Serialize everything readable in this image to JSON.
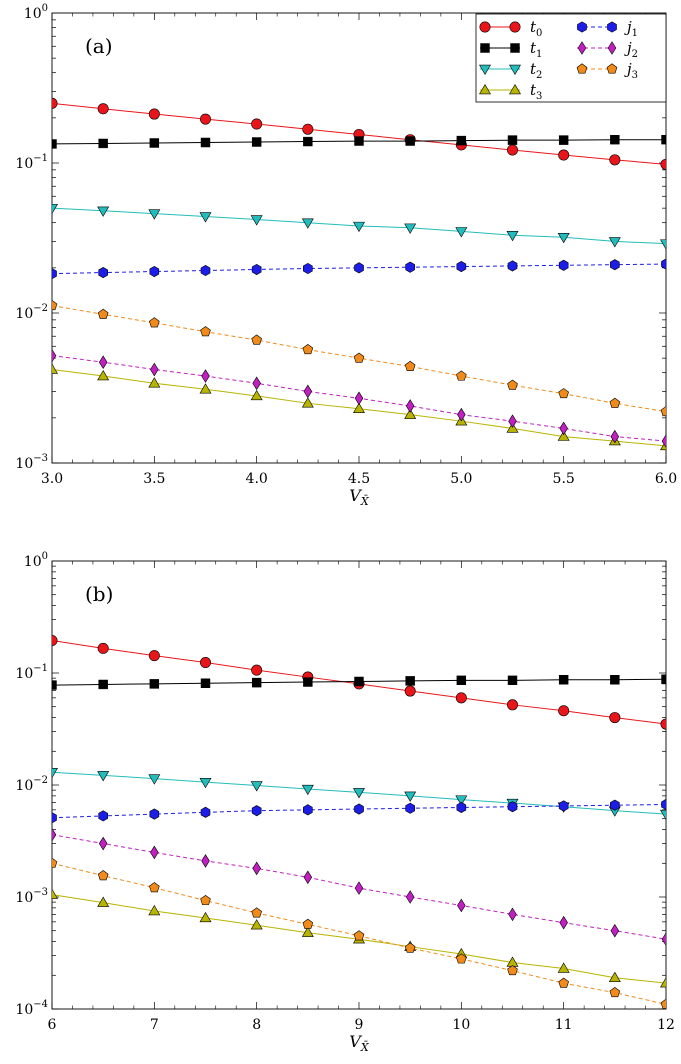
{
  "chart_data": [
    {
      "type": "line",
      "panel_label": "(a)",
      "xlabel": "V",
      "xlabel_sub": "X̄",
      "ylabel": "",
      "yscale": "log",
      "xlim": [
        3.0,
        6.0
      ],
      "ylim": [
        0.001,
        1
      ],
      "x_ticks": [
        3.0,
        3.5,
        4.0,
        4.5,
        5.0,
        5.5,
        6.0
      ],
      "x_tick_labels": [
        "3.0",
        "3.5",
        "4.0",
        "4.5",
        "5.0",
        "5.5",
        "6.0"
      ],
      "y_ticks": [
        {
          "base": "10",
          "exp": "0",
          "value": 1
        },
        {
          "base": "10",
          "exp": "−1",
          "value": 0.1
        },
        {
          "base": "10",
          "exp": "−2",
          "value": 0.01
        },
        {
          "base": "10",
          "exp": "−3",
          "value": 0.001
        }
      ],
      "legend_position": "top-right",
      "x": [
        3.0,
        3.25,
        3.5,
        3.75,
        4.0,
        4.25,
        4.5,
        4.75,
        5.0,
        5.25,
        5.5,
        5.75,
        6.0
      ],
      "series": [
        {
          "name": "t",
          "sub": "0",
          "color": "#e8161b",
          "marker": "circle",
          "dashed": false,
          "values": [
            0.25,
            0.23,
            0.212,
            0.196,
            0.182,
            0.168,
            0.155,
            0.143,
            0.132,
            0.122,
            0.113,
            0.105,
            0.098
          ]
        },
        {
          "name": "t",
          "sub": "1",
          "color": "#000000",
          "marker": "square",
          "dashed": false,
          "values": [
            0.134,
            0.135,
            0.136,
            0.137,
            0.138,
            0.139,
            0.14,
            0.14,
            0.141,
            0.142,
            0.142,
            0.143,
            0.143
          ]
        },
        {
          "name": "t",
          "sub": "2",
          "color": "#23bcbc",
          "marker": "triangle-down",
          "dashed": false,
          "values": [
            0.05,
            0.048,
            0.046,
            0.044,
            0.042,
            0.04,
            0.038,
            0.037,
            0.035,
            0.033,
            0.032,
            0.03,
            0.029
          ]
        },
        {
          "name": "t",
          "sub": "3",
          "color": "#b9b400",
          "marker": "triangle-up",
          "dashed": false,
          "values": [
            0.0042,
            0.0038,
            0.0034,
            0.0031,
            0.0028,
            0.0025,
            0.0023,
            0.0021,
            0.0019,
            0.0017,
            0.0015,
            0.0014,
            0.0013
          ]
        },
        {
          "name": "j",
          "sub": "1",
          "color": "#1d1de8",
          "marker": "hexagon",
          "dashed": true,
          "values": [
            0.0183,
            0.0186,
            0.0189,
            0.0192,
            0.0195,
            0.0198,
            0.02,
            0.0202,
            0.0204,
            0.0206,
            0.0208,
            0.021,
            0.0212
          ]
        },
        {
          "name": "j",
          "sub": "2",
          "color": "#c020c0",
          "marker": "diamond",
          "dashed": true,
          "values": [
            0.0052,
            0.0047,
            0.0042,
            0.0038,
            0.0034,
            0.003,
            0.0027,
            0.0024,
            0.0021,
            0.0019,
            0.0017,
            0.0015,
            0.0014
          ]
        },
        {
          "name": "j",
          "sub": "3",
          "color": "#f08a1a",
          "marker": "pentagon",
          "dashed": true,
          "values": [
            0.0112,
            0.0098,
            0.0086,
            0.0075,
            0.0066,
            0.0057,
            0.005,
            0.0044,
            0.0038,
            0.0033,
            0.0029,
            0.0025,
            0.0022
          ]
        }
      ]
    },
    {
      "type": "line",
      "panel_label": "(b)",
      "xlabel": "V",
      "xlabel_sub": "X̄",
      "ylabel": "",
      "yscale": "log",
      "xlim": [
        6,
        12
      ],
      "ylim": [
        0.0001,
        1
      ],
      "x_ticks": [
        6,
        7,
        8,
        9,
        10,
        11,
        12
      ],
      "x_tick_labels": [
        "6",
        "7",
        "8",
        "9",
        "10",
        "11",
        "12"
      ],
      "y_ticks": [
        {
          "base": "10",
          "exp": "0",
          "value": 1
        },
        {
          "base": "10",
          "exp": "−1",
          "value": 0.1
        },
        {
          "base": "10",
          "exp": "−2",
          "value": 0.01
        },
        {
          "base": "10",
          "exp": "−3",
          "value": 0.001
        },
        {
          "base": "10",
          "exp": "−4",
          "value": 0.0001
        }
      ],
      "legend_position": "none",
      "x": [
        6.0,
        6.5,
        7.0,
        7.5,
        8.0,
        8.5,
        9.0,
        9.5,
        10.0,
        10.5,
        11.0,
        11.5,
        12.0
      ],
      "series": [
        {
          "name": "t",
          "sub": "0",
          "color": "#e8161b",
          "marker": "circle",
          "dashed": false,
          "values": [
            0.195,
            0.166,
            0.143,
            0.124,
            0.106,
            0.092,
            0.08,
            0.069,
            0.06,
            0.052,
            0.046,
            0.04,
            0.035
          ]
        },
        {
          "name": "t",
          "sub": "1",
          "color": "#000000",
          "marker": "square",
          "dashed": false,
          "values": [
            0.078,
            0.079,
            0.08,
            0.081,
            0.082,
            0.083,
            0.084,
            0.085,
            0.086,
            0.086,
            0.087,
            0.087,
            0.088
          ]
        },
        {
          "name": "t",
          "sub": "2",
          "color": "#23bcbc",
          "marker": "triangle-down",
          "dashed": false,
          "values": [
            0.013,
            0.0122,
            0.0114,
            0.0106,
            0.0099,
            0.0092,
            0.0086,
            0.008,
            0.0074,
            0.0069,
            0.0064,
            0.0059,
            0.0055
          ]
        },
        {
          "name": "t",
          "sub": "3",
          "color": "#b9b400",
          "marker": "triangle-up",
          "dashed": false,
          "values": [
            0.00105,
            0.00089,
            0.00075,
            0.00065,
            0.00056,
            0.00048,
            0.00042,
            0.00036,
            0.00031,
            0.00026,
            0.00023,
            0.00019,
            0.00017
          ]
        },
        {
          "name": "j",
          "sub": "1",
          "color": "#1d1de8",
          "marker": "hexagon",
          "dashed": true,
          "values": [
            0.0051,
            0.0053,
            0.0055,
            0.0057,
            0.0059,
            0.006,
            0.0061,
            0.0062,
            0.0063,
            0.0064,
            0.0065,
            0.0066,
            0.0067
          ]
        },
        {
          "name": "j",
          "sub": "2",
          "color": "#c020c0",
          "marker": "diamond",
          "dashed": true,
          "values": [
            0.0036,
            0.003,
            0.0025,
            0.0021,
            0.0018,
            0.0015,
            0.0012,
            0.001,
            0.00084,
            0.0007,
            0.00059,
            0.0005,
            0.00042
          ]
        },
        {
          "name": "j",
          "sub": "3",
          "color": "#f08a1a",
          "marker": "pentagon",
          "dashed": true,
          "values": [
            0.002,
            0.00155,
            0.00121,
            0.00093,
            0.00072,
            0.00057,
            0.00045,
            0.00035,
            0.00028,
            0.00022,
            0.00017,
            0.00014,
            0.00011
          ]
        }
      ]
    }
  ]
}
